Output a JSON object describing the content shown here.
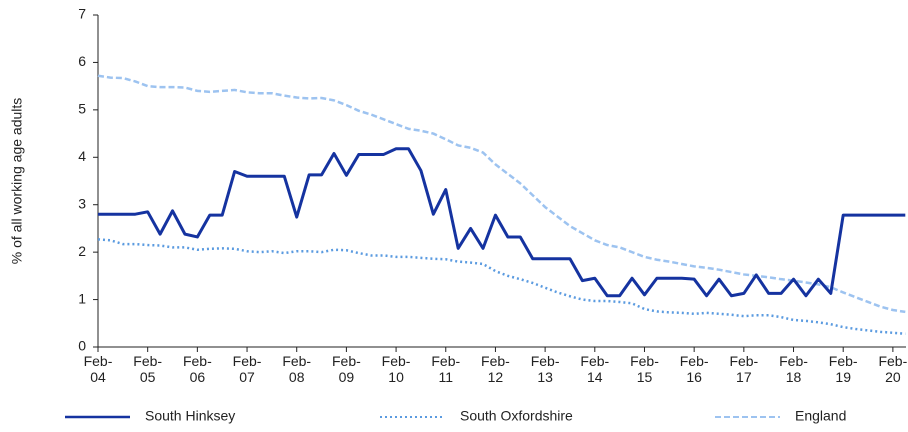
{
  "chart_data": {
    "type": "line",
    "ylabel": "% of all working age adults",
    "categories": [
      "Feb-04",
      null,
      null,
      null,
      "Feb-05",
      null,
      null,
      null,
      "Feb-06",
      null,
      null,
      null,
      "Feb-07",
      null,
      null,
      null,
      "Feb-08",
      null,
      null,
      null,
      "Feb-09",
      null,
      null,
      null,
      "Feb-10",
      null,
      null,
      null,
      "Feb-11",
      null,
      null,
      null,
      "Feb-12",
      null,
      null,
      null,
      "Feb-13",
      null,
      null,
      null,
      "Feb-14",
      null,
      null,
      null,
      "Feb-15",
      null,
      null,
      null,
      "Feb-16",
      null,
      null,
      null,
      "Feb-17",
      null,
      null,
      null,
      "Feb-18",
      null,
      null,
      null,
      "Feb-19",
      null,
      null,
      null,
      "Feb-20",
      null
    ],
    "ylim": [
      0,
      7
    ],
    "yticks": [
      0,
      1,
      2,
      3,
      4,
      5,
      6,
      7
    ],
    "legend": "bottom",
    "series": [
      {
        "name": "South Hinksey",
        "color": "#1533a0",
        "style": "solid",
        "values": [
          2.8,
          2.8,
          2.8,
          2.8,
          2.85,
          2.38,
          2.87,
          2.38,
          2.32,
          2.78,
          2.78,
          3.7,
          3.6,
          3.6,
          3.6,
          3.6,
          2.74,
          3.63,
          3.63,
          4.08,
          3.62,
          4.06,
          4.06,
          4.06,
          4.18,
          4.18,
          3.72,
          2.8,
          3.32,
          2.08,
          2.5,
          2.08,
          2.78,
          2.32,
          2.32,
          1.86,
          1.86,
          1.86,
          1.86,
          1.4,
          1.45,
          1.08,
          1.08,
          1.45,
          1.1,
          1.45,
          1.45,
          1.45,
          1.43,
          1.08,
          1.43,
          1.08,
          1.13,
          1.52,
          1.13,
          1.13,
          1.43,
          1.08,
          1.43,
          1.13,
          2.78,
          2.78,
          2.78,
          2.78,
          2.78,
          2.78
        ]
      },
      {
        "name": "South Oxfordshire",
        "color": "#5b9be0",
        "style": "dotted",
        "values": [
          2.27,
          2.25,
          2.17,
          2.17,
          2.15,
          2.14,
          2.1,
          2.1,
          2.05,
          2.07,
          2.08,
          2.07,
          2.02,
          2.0,
          2.02,
          1.98,
          2.02,
          2.02,
          2.0,
          2.05,
          2.04,
          1.98,
          1.93,
          1.93,
          1.9,
          1.9,
          1.88,
          1.86,
          1.85,
          1.8,
          1.78,
          1.75,
          1.6,
          1.5,
          1.43,
          1.35,
          1.25,
          1.15,
          1.07,
          1.0,
          0.97,
          0.97,
          0.95,
          0.92,
          0.8,
          0.75,
          0.73,
          0.72,
          0.7,
          0.72,
          0.7,
          0.68,
          0.65,
          0.67,
          0.67,
          0.63,
          0.57,
          0.55,
          0.52,
          0.48,
          0.42,
          0.38,
          0.35,
          0.32,
          0.3,
          0.28
        ]
      },
      {
        "name": "England",
        "color": "#9dc3f0",
        "style": "dashed",
        "values": [
          5.72,
          5.68,
          5.67,
          5.6,
          5.5,
          5.48,
          5.48,
          5.47,
          5.4,
          5.38,
          5.4,
          5.42,
          5.37,
          5.35,
          5.35,
          5.3,
          5.26,
          5.24,
          5.25,
          5.2,
          5.1,
          4.98,
          4.9,
          4.8,
          4.7,
          4.6,
          4.56,
          4.5,
          4.38,
          4.25,
          4.2,
          4.1,
          3.85,
          3.65,
          3.45,
          3.2,
          2.95,
          2.75,
          2.55,
          2.4,
          2.25,
          2.15,
          2.1,
          2.0,
          1.9,
          1.84,
          1.8,
          1.75,
          1.7,
          1.67,
          1.63,
          1.58,
          1.53,
          1.5,
          1.47,
          1.43,
          1.4,
          1.36,
          1.32,
          1.26,
          1.15,
          1.05,
          0.95,
          0.85,
          0.78,
          0.74
        ]
      }
    ]
  }
}
